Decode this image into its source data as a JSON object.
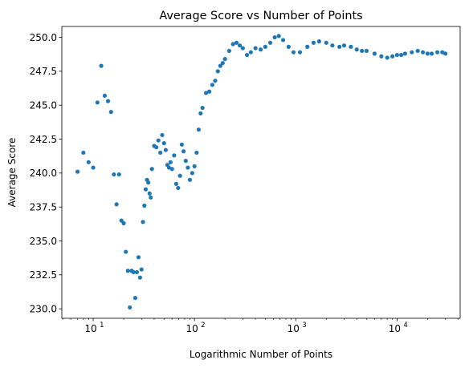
{
  "chart_data": {
    "type": "scatter",
    "title": "Average Score vs Number of Points",
    "xlabel": "Logarithmic Number of Points",
    "ylabel": "Average Score",
    "x_scale": "log",
    "xlim": [
      4.9,
      42000
    ],
    "ylim": [
      229.3,
      250.8
    ],
    "x_ticks": [
      {
        "base": "10",
        "exp": "1",
        "value": 10
      },
      {
        "base": "10",
        "exp": "2",
        "value": 100
      },
      {
        "base": "10",
        "exp": "3",
        "value": 1000
      },
      {
        "base": "10",
        "exp": "4",
        "value": 10000
      }
    ],
    "y_ticks": [
      "230.0",
      "232.5",
      "235.0",
      "237.5",
      "240.0",
      "242.5",
      "245.0",
      "247.5",
      "250.0"
    ],
    "y_tick_values": [
      230.0,
      232.5,
      235.0,
      237.5,
      240.0,
      242.5,
      245.0,
      247.5,
      250.0
    ],
    "grid": false,
    "marker_color": "#1f77b4",
    "points": [
      [
        7,
        240.1
      ],
      [
        8,
        241.5
      ],
      [
        9,
        240.8
      ],
      [
        10,
        240.4
      ],
      [
        11,
        245.2
      ],
      [
        12,
        247.9
      ],
      [
        13,
        245.7
      ],
      [
        14,
        245.3
      ],
      [
        15,
        244.5
      ],
      [
        16,
        239.9
      ],
      [
        17,
        237.7
      ],
      [
        18,
        239.9
      ],
      [
        19,
        236.5
      ],
      [
        20,
        236.3
      ],
      [
        21,
        234.2
      ],
      [
        22,
        232.8
      ],
      [
        23,
        230.1
      ],
      [
        24,
        232.8
      ],
      [
        25,
        232.7
      ],
      [
        26,
        230.8
      ],
      [
        27,
        232.7
      ],
      [
        28,
        233.8
      ],
      [
        29,
        232.3
      ],
      [
        30,
        232.9
      ],
      [
        31,
        236.4
      ],
      [
        32,
        237.6
      ],
      [
        33,
        238.8
      ],
      [
        34,
        239.5
      ],
      [
        35,
        239.3
      ],
      [
        36,
        238.5
      ],
      [
        37,
        238.2
      ],
      [
        38,
        240.3
      ],
      [
        40,
        242.0
      ],
      [
        42,
        241.9
      ],
      [
        44,
        242.4
      ],
      [
        46,
        241.5
      ],
      [
        48,
        242.8
      ],
      [
        50,
        242.2
      ],
      [
        52,
        241.7
      ],
      [
        54,
        240.6
      ],
      [
        56,
        240.4
      ],
      [
        58,
        240.8
      ],
      [
        60,
        240.3
      ],
      [
        63,
        241.3
      ],
      [
        66,
        239.2
      ],
      [
        69,
        238.9
      ],
      [
        72,
        239.8
      ],
      [
        75,
        242.1
      ],
      [
        78,
        241.6
      ],
      [
        82,
        240.9
      ],
      [
        86,
        240.4
      ],
      [
        90,
        239.5
      ],
      [
        95,
        240.0
      ],
      [
        100,
        240.5
      ],
      [
        105,
        241.5
      ],
      [
        110,
        243.2
      ],
      [
        115,
        244.4
      ],
      [
        120,
        244.8
      ],
      [
        130,
        245.9
      ],
      [
        140,
        246.0
      ],
      [
        150,
        246.5
      ],
      [
        160,
        246.8
      ],
      [
        170,
        247.5
      ],
      [
        180,
        247.9
      ],
      [
        190,
        248.1
      ],
      [
        200,
        248.4
      ],
      [
        220,
        249.0
      ],
      [
        240,
        249.5
      ],
      [
        260,
        249.6
      ],
      [
        280,
        249.4
      ],
      [
        300,
        249.2
      ],
      [
        330,
        248.7
      ],
      [
        360,
        248.9
      ],
      [
        400,
        249.2
      ],
      [
        450,
        249.1
      ],
      [
        500,
        249.3
      ],
      [
        560,
        249.6
      ],
      [
        620,
        250.0
      ],
      [
        680,
        250.1
      ],
      [
        750,
        249.8
      ],
      [
        850,
        249.3
      ],
      [
        950,
        248.9
      ],
      [
        1100,
        248.9
      ],
      [
        1300,
        249.3
      ],
      [
        1500,
        249.6
      ],
      [
        1700,
        249.7
      ],
      [
        2000,
        249.6
      ],
      [
        2300,
        249.4
      ],
      [
        2700,
        249.3
      ],
      [
        3000,
        249.4
      ],
      [
        3500,
        249.3
      ],
      [
        4000,
        249.1
      ],
      [
        4500,
        249.0
      ],
      [
        5000,
        249.0
      ],
      [
        6000,
        248.8
      ],
      [
        7000,
        248.6
      ],
      [
        8000,
        248.5
      ],
      [
        9000,
        248.6
      ],
      [
        10000,
        248.7
      ],
      [
        11000,
        248.7
      ],
      [
        12000,
        248.8
      ],
      [
        14000,
        248.9
      ],
      [
        16000,
        249.0
      ],
      [
        18000,
        248.9
      ],
      [
        20000,
        248.8
      ],
      [
        22000,
        248.8
      ],
      [
        25000,
        248.9
      ],
      [
        28000,
        248.9
      ],
      [
        30000,
        248.8
      ]
    ]
  }
}
